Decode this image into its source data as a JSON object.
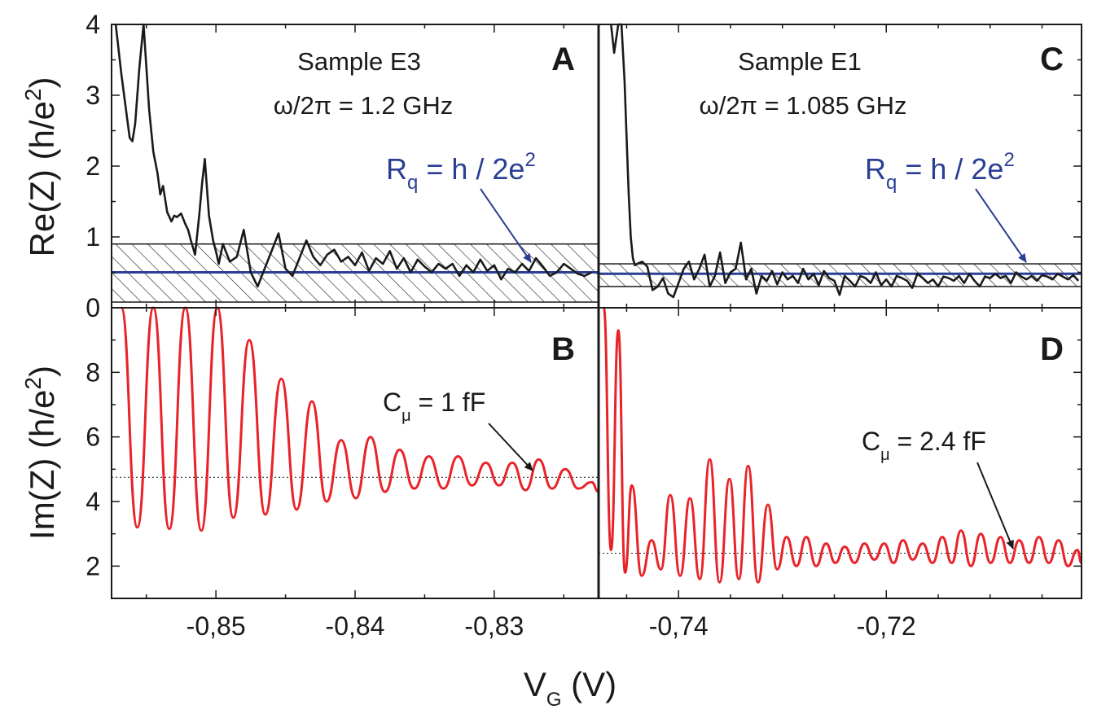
{
  "chart_data": [
    {
      "panel": "A",
      "type": "line",
      "title": "Sample E3",
      "subtitle": "ω/2π = 1.2 GHz",
      "ylabel": "Re(Z) (h/e²)",
      "xlim": [
        -0.8575,
        -0.8225
      ],
      "ylim": [
        0,
        4
      ],
      "yticks": [
        "0",
        "1",
        "2",
        "3",
        "4"
      ],
      "annotation": "Rq = h / 2e²",
      "reference": 0.5,
      "band": [
        0.08,
        0.9
      ],
      "series": [
        {
          "x": [
            -0.8572,
            -0.8568,
            -0.8565,
            -0.8562,
            -0.856,
            -0.8558,
            -0.8555,
            -0.8552,
            -0.855,
            -0.8548,
            -0.8545,
            -0.8542,
            -0.854,
            -0.8538,
            -0.8535,
            -0.8532,
            -0.853,
            -0.8528,
            -0.8525,
            -0.8522,
            -0.852,
            -0.8518,
            -0.8515,
            -0.8512,
            -0.851,
            -0.8508,
            -0.8505,
            -0.8502,
            -0.85,
            -0.8498,
            -0.8495,
            -0.849,
            -0.8485,
            -0.848,
            -0.8475,
            -0.847,
            -0.8465,
            -0.846,
            -0.8455,
            -0.845,
            -0.8445,
            -0.844,
            -0.8435,
            -0.843,
            -0.8425,
            -0.842,
            -0.8415,
            -0.841,
            -0.8405,
            -0.84,
            -0.8395,
            -0.839,
            -0.8385,
            -0.838,
            -0.8375,
            -0.837,
            -0.8365,
            -0.836,
            -0.8355,
            -0.835,
            -0.8345,
            -0.834,
            -0.8335,
            -0.833,
            -0.8325,
            -0.832,
            -0.8315,
            -0.831,
            -0.8305,
            -0.83,
            -0.8295,
            -0.829,
            -0.8285,
            -0.828,
            -0.8275,
            -0.827,
            -0.8265,
            -0.826,
            -0.8255,
            -0.825,
            -0.8245,
            -0.824,
            -0.8235,
            -0.823
          ],
          "y": [
            4.0,
            3.3,
            2.85,
            2.4,
            2.35,
            2.6,
            3.4,
            4.0,
            3.4,
            2.8,
            2.2,
            1.9,
            1.6,
            1.72,
            1.35,
            1.22,
            1.3,
            1.28,
            1.33,
            1.18,
            1.1,
            0.95,
            0.75,
            1.3,
            1.75,
            2.1,
            1.3,
            0.95,
            0.8,
            0.62,
            0.9,
            0.65,
            0.72,
            1.1,
            0.5,
            0.3,
            0.55,
            0.8,
            1.05,
            0.55,
            0.45,
            0.7,
            0.95,
            0.72,
            0.6,
            0.75,
            0.82,
            0.65,
            0.72,
            0.6,
            0.78,
            0.52,
            0.7,
            0.62,
            0.8,
            0.55,
            0.7,
            0.5,
            0.68,
            0.58,
            0.5,
            0.62,
            0.55,
            0.62,
            0.45,
            0.6,
            0.5,
            0.68,
            0.52,
            0.6,
            0.4,
            0.55,
            0.5,
            0.62,
            0.52,
            0.7,
            0.58,
            0.45,
            0.5,
            0.62,
            0.55,
            0.48,
            0.45,
            0.5
          ]
        }
      ]
    },
    {
      "panel": "B",
      "type": "line",
      "ylabel": "Im(Z) (h/e²)",
      "xlabel": "VG (V)",
      "xlim": [
        -0.8575,
        -0.8225
      ],
      "xticks": [
        "-0,85",
        "-0,84",
        "-0,83"
      ],
      "ylim": [
        1,
        10
      ],
      "yticks": [
        "2",
        "4",
        "6",
        "8"
      ],
      "annotation": "Cμ = 1 fF",
      "reference": 4.75,
      "series": [
        {
          "x": [
            -0.8568,
            -0.8545,
            -0.8522,
            -0.8499,
            -0.8476,
            -0.8453,
            -0.8431,
            -0.841,
            -0.8389,
            -0.8368,
            -0.8347,
            -0.8326,
            -0.8306,
            -0.8287,
            -0.8268,
            -0.8249,
            -0.823
          ],
          "peaks": [
            10.5,
            10.5,
            10.5,
            10.5,
            9.0,
            7.8,
            7.1,
            5.9,
            6.0,
            5.6,
            5.4,
            5.4,
            5.2,
            5.2,
            5.3,
            5.0,
            4.6
          ],
          "troughs": [
            3.2,
            3.15,
            3.1,
            3.5,
            3.6,
            3.75,
            4.0,
            4.1,
            4.3,
            4.4,
            4.4,
            4.5,
            4.5,
            4.35,
            4.4,
            4.4,
            4.3
          ]
        }
      ]
    },
    {
      "panel": "C",
      "type": "line",
      "title": "Sample E1",
      "subtitle": "ω/2π = 1.085 GHz",
      "xlim": [
        -0.7477,
        -0.7012
      ],
      "ylim": [
        0,
        4
      ],
      "annotation": "Rq = h / 2e²",
      "reference": 0.48,
      "band": [
        0.3,
        0.62
      ],
      "series": [
        {
          "x": [
            -0.7465,
            -0.7462,
            -0.7458,
            -0.7455,
            -0.7452,
            -0.745,
            -0.7448,
            -0.7446,
            -0.7444,
            -0.7442,
            -0.744,
            -0.7435,
            -0.743,
            -0.7425,
            -0.742,
            -0.7415,
            -0.741,
            -0.7405,
            -0.74,
            -0.7395,
            -0.739,
            -0.7385,
            -0.738,
            -0.7375,
            -0.737,
            -0.7365,
            -0.736,
            -0.7355,
            -0.735,
            -0.7345,
            -0.734,
            -0.7335,
            -0.733,
            -0.7325,
            -0.732,
            -0.7315,
            -0.731,
            -0.7305,
            -0.73,
            -0.7295,
            -0.729,
            -0.7285,
            -0.728,
            -0.7275,
            -0.727,
            -0.7265,
            -0.726,
            -0.7255,
            -0.725,
            -0.7245,
            -0.724,
            -0.7235,
            -0.723,
            -0.7225,
            -0.722,
            -0.7215,
            -0.721,
            -0.7205,
            -0.72,
            -0.7195,
            -0.719,
            -0.7185,
            -0.718,
            -0.7175,
            -0.717,
            -0.7165,
            -0.716,
            -0.7155,
            -0.715,
            -0.7145,
            -0.714,
            -0.7135,
            -0.713,
            -0.7125,
            -0.712,
            -0.7115,
            -0.711,
            -0.7105,
            -0.71,
            -0.7095,
            -0.709,
            -0.7085,
            -0.708,
            -0.7075,
            -0.707,
            -0.7065,
            -0.706,
            -0.7055,
            -0.705,
            -0.7045,
            -0.704,
            -0.7035,
            -0.703,
            -0.7025,
            -0.702,
            -0.7015
          ],
          "y": [
            4.0,
            3.6,
            4.0,
            4.0,
            3.2,
            2.4,
            1.6,
            1.0,
            0.7,
            0.6,
            0.62,
            0.65,
            0.58,
            0.25,
            0.3,
            0.42,
            0.2,
            0.15,
            0.35,
            0.55,
            0.65,
            0.4,
            0.55,
            0.75,
            0.3,
            0.45,
            0.78,
            0.35,
            0.5,
            0.55,
            0.92,
            0.4,
            0.55,
            0.2,
            0.45,
            0.38,
            0.52,
            0.33,
            0.5,
            0.4,
            0.45,
            0.35,
            0.55,
            0.4,
            0.48,
            0.32,
            0.52,
            0.42,
            0.38,
            0.18,
            0.45,
            0.38,
            0.3,
            0.45,
            0.42,
            0.35,
            0.5,
            0.32,
            0.4,
            0.3,
            0.45,
            0.42,
            0.38,
            0.28,
            0.48,
            0.42,
            0.35,
            0.4,
            0.3,
            0.44,
            0.42,
            0.38,
            0.45,
            0.35,
            0.48,
            0.38,
            0.3,
            0.44,
            0.42,
            0.48,
            0.42,
            0.45,
            0.35,
            0.5,
            0.44,
            0.4,
            0.45,
            0.38,
            0.46,
            0.44,
            0.4,
            0.48,
            0.44,
            0.4,
            0.46,
            0.38
          ]
        }
      ]
    },
    {
      "panel": "D",
      "type": "line",
      "xlim": [
        -0.7477,
        -0.7012
      ],
      "xticks": [
        "-0,74",
        "-0,72"
      ],
      "ylim": [
        1,
        10
      ],
      "annotation": "Cμ = 2.4 fF",
      "reference": 2.4,
      "series": [
        {
          "x": [
            -0.7472,
            -0.7458,
            -0.7445,
            -0.7426,
            -0.7408,
            -0.7389,
            -0.737,
            -0.7351,
            -0.7333,
            -0.7314,
            -0.7296,
            -0.7277,
            -0.7258,
            -0.724,
            -0.7221,
            -0.7202,
            -0.7184,
            -0.7165,
            -0.7146,
            -0.7128,
            -0.7109,
            -0.709,
            -0.7072,
            -0.7053,
            -0.7034,
            -0.7016
          ],
          "peaks": [
            10.5,
            9.3,
            4.5,
            2.8,
            4.2,
            4.1,
            5.3,
            4.7,
            5.1,
            3.9,
            2.9,
            2.9,
            2.7,
            2.6,
            2.7,
            2.7,
            2.8,
            2.7,
            2.9,
            3.1,
            3.0,
            2.9,
            2.8,
            2.9,
            2.8,
            2.5
          ],
          "troughs": [
            2.5,
            1.8,
            1.7,
            1.9,
            1.7,
            1.6,
            1.5,
            1.6,
            1.5,
            1.9,
            2.0,
            2.0,
            2.1,
            2.1,
            2.2,
            2.1,
            2.2,
            2.1,
            2.1,
            2.0,
            2.1,
            2.1,
            2.1,
            2.1,
            2.0,
            2.1
          ]
        }
      ]
    }
  ],
  "figure": {
    "xlabel_main": "V",
    "xlabel_sub": "G",
    "xlabel_unit": " (V)",
    "ylabel_top_main": "Re(Z) (h/e",
    "ylabel_bottom_main": "Im(Z) (h/e",
    "ylabel_exp": "2",
    "ylabel_close": ")",
    "ann_rq_main": "R",
    "ann_rq_sub": "q",
    "ann_rq_rest": " = h / 2e",
    "ann_rq_exp": "2",
    "ann_c_main": "C",
    "ann_c_sub": "μ",
    "ann_cB_rest": " = 1 fF",
    "ann_cD_rest": " = 2.4 fF",
    "colors": {
      "re": "#1a1a1a",
      "im": "#e8232a",
      "ref": "#2a3f94",
      "ann": "#2a3f94"
    }
  }
}
